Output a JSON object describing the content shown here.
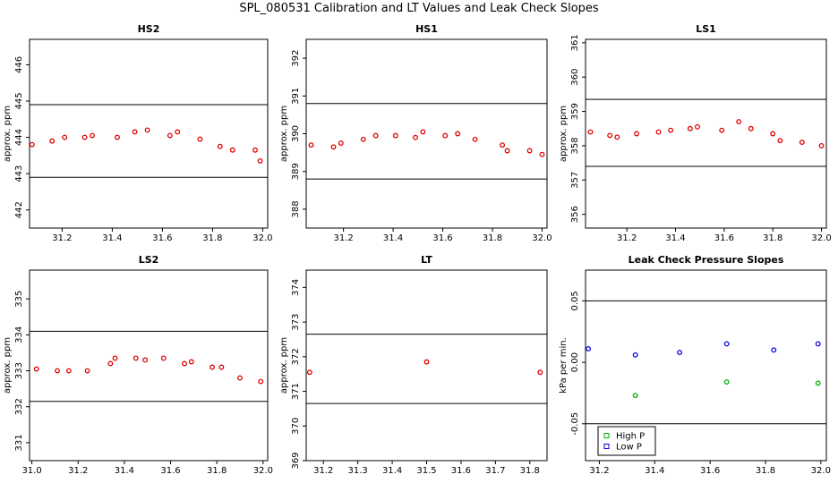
{
  "title": "SPL_080531  Calibration and LT Values and Leak Check Slopes",
  "chart_data": [
    {
      "type": "scatter",
      "title": "HS2",
      "ylabel": "approx. ppm",
      "xlim": [
        31.07,
        32.02
      ],
      "ylim": [
        441.5,
        446.7
      ],
      "xticks": [
        31.2,
        31.4,
        31.6,
        31.8,
        32.0
      ],
      "xtick_labels": [
        "31.2",
        "31.4",
        "31.6",
        "31.8",
        "32.0"
      ],
      "yticks": [
        442,
        443,
        444,
        445,
        446
      ],
      "ytick_labels": [
        "442",
        "443",
        "444",
        "445",
        "446"
      ],
      "hlines": [
        444.9,
        442.9
      ],
      "series": [
        {
          "color": "#e00000",
          "x": [
            31.08,
            31.16,
            31.21,
            31.29,
            31.32,
            31.42,
            31.49,
            31.54,
            31.63,
            31.66,
            31.75,
            31.83,
            31.88,
            31.97,
            31.99
          ],
          "y": [
            443.8,
            443.9,
            444.0,
            444.0,
            444.05,
            444.0,
            444.15,
            444.2,
            444.05,
            444.15,
            443.95,
            443.75,
            443.65,
            443.65,
            443.35
          ]
        }
      ]
    },
    {
      "type": "scatter",
      "title": "HS1",
      "ylabel": "approx. ppm",
      "xlim": [
        31.05,
        32.02
      ],
      "ylim": [
        387.5,
        392.5
      ],
      "xticks": [
        31.2,
        31.4,
        31.6,
        31.8,
        32.0
      ],
      "xtick_labels": [
        "31.2",
        "31.4",
        "31.6",
        "31.8",
        "32.0"
      ],
      "yticks": [
        388,
        389,
        390,
        391,
        392
      ],
      "ytick_labels": [
        "388",
        "389",
        "390",
        "391",
        "392"
      ],
      "hlines": [
        390.8,
        388.8
      ],
      "series": [
        {
          "color": "#e00000",
          "x": [
            31.07,
            31.16,
            31.19,
            31.28,
            31.33,
            31.41,
            31.49,
            31.52,
            31.61,
            31.66,
            31.73,
            31.84,
            31.86,
            31.95,
            32.0
          ],
          "y": [
            389.7,
            389.65,
            389.75,
            389.85,
            389.95,
            389.95,
            389.9,
            390.05,
            389.95,
            390.0,
            389.85,
            389.7,
            389.55,
            389.55,
            389.45
          ]
        }
      ]
    },
    {
      "type": "scatter",
      "title": "LS1",
      "ylabel": "approx. ppm",
      "xlim": [
        31.03,
        32.02
      ],
      "ylim": [
        355.6,
        361.1
      ],
      "xticks": [
        31.2,
        31.4,
        31.6,
        31.8,
        32.0
      ],
      "xtick_labels": [
        "31.2",
        "31.4",
        "31.6",
        "31.8",
        "32.0"
      ],
      "yticks": [
        356,
        357,
        358,
        359,
        360,
        361
      ],
      "ytick_labels": [
        "356",
        "357",
        "358",
        "359",
        "360",
        "361"
      ],
      "hlines": [
        359.35,
        357.4
      ],
      "series": [
        {
          "color": "#e00000",
          "x": [
            31.05,
            31.13,
            31.16,
            31.24,
            31.33,
            31.38,
            31.46,
            31.49,
            31.59,
            31.66,
            31.71,
            31.8,
            31.83,
            31.92,
            32.0
          ],
          "y": [
            358.4,
            358.3,
            358.25,
            358.35,
            358.4,
            358.45,
            358.5,
            358.55,
            358.45,
            358.7,
            358.5,
            358.35,
            358.15,
            358.1,
            358.0
          ]
        }
      ]
    },
    {
      "type": "scatter",
      "title": "LS2",
      "ylabel": "approx. ppm",
      "xlim": [
        30.99,
        32.02
      ],
      "ylim": [
        330.5,
        335.8
      ],
      "xticks": [
        31.0,
        31.2,
        31.4,
        31.6,
        31.8,
        32.0
      ],
      "xtick_labels": [
        "31.0",
        "31.2",
        "31.4",
        "31.6",
        "31.8",
        "32.0"
      ],
      "yticks": [
        331,
        332,
        333,
        334,
        335
      ],
      "ytick_labels": [
        "331",
        "332",
        "333",
        "334",
        "335"
      ],
      "hlines": [
        334.1,
        332.15
      ],
      "series": [
        {
          "color": "#e00000",
          "x": [
            31.02,
            31.11,
            31.16,
            31.24,
            31.34,
            31.36,
            31.45,
            31.49,
            31.57,
            31.66,
            31.69,
            31.78,
            31.82,
            31.9,
            31.99
          ],
          "y": [
            333.05,
            333.0,
            333.0,
            333.0,
            333.2,
            333.35,
            333.35,
            333.3,
            333.35,
            333.2,
            333.25,
            333.1,
            333.1,
            332.8,
            332.7
          ]
        }
      ]
    },
    {
      "type": "scatter",
      "title": "LT",
      "ylabel": "approx. ppm",
      "xlim": [
        31.15,
        31.85
      ],
      "ylim": [
        369.0,
        374.5
      ],
      "xticks": [
        31.2,
        31.3,
        31.4,
        31.5,
        31.6,
        31.7,
        31.8
      ],
      "xtick_labels": [
        "31.2",
        "31.3",
        "31.4",
        "31.5",
        "31.6",
        "31.7",
        "31.8"
      ],
      "yticks": [
        369,
        370,
        371,
        372,
        373,
        374
      ],
      "ytick_labels": [
        "369",
        "370",
        "371",
        "372",
        "373",
        "374"
      ],
      "hlines": [
        372.65,
        370.65
      ],
      "series": [
        {
          "color": "#e00000",
          "x": [
            31.16,
            31.5,
            31.83
          ],
          "y": [
            371.55,
            371.85,
            371.55
          ]
        }
      ]
    },
    {
      "type": "scatter",
      "title": "Leak Check Pressure Slopes",
      "ylabel": "kPa per min.",
      "xlim": [
        31.15,
        32.02
      ],
      "ylim": [
        -0.08,
        0.075
      ],
      "xticks": [
        31.2,
        31.4,
        31.6,
        31.8,
        32.0
      ],
      "xtick_labels": [
        "31.2",
        "31.4",
        "31.6",
        "31.8",
        "32.0"
      ],
      "yticks": [
        -0.05,
        0.0,
        0.05
      ],
      "ytick_labels": [
        "-0.05",
        "0.00",
        "0.05"
      ],
      "hlines": [
        0.05,
        -0.05
      ],
      "legend_position": "bottom-left",
      "series": [
        {
          "name": "High P",
          "color": "#00b000",
          "x": [
            31.33,
            31.66,
            31.99
          ],
          "y": [
            -0.027,
            -0.016,
            -0.017
          ]
        },
        {
          "name": "Low P",
          "color": "#0000e0",
          "x": [
            31.16,
            31.33,
            31.49,
            31.66,
            31.83,
            31.99
          ],
          "y": [
            0.011,
            0.006,
            0.008,
            0.015,
            0.01,
            0.015
          ]
        }
      ]
    }
  ]
}
